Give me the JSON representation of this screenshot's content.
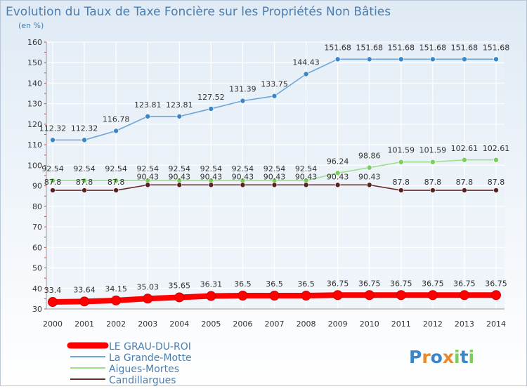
{
  "title": "Evolution du Taux de Taxe Foncière sur les Propriétés Non Bâties",
  "unit_label": "(en %)",
  "brand": "Proxiti",
  "colors": {
    "bg_top": "#e6eff7",
    "bg_bottom": "#ffffff",
    "title": "#4a7eb0",
    "axis_text": "#333333",
    "grid": "#ffffff"
  },
  "chart_data": {
    "type": "line",
    "x": [
      "2000",
      "2001",
      "2002",
      "2003",
      "2004",
      "2005",
      "2006",
      "2007",
      "2008",
      "2009",
      "2010",
      "2011",
      "2012",
      "2013",
      "2014"
    ],
    "ylim": [
      30,
      160
    ],
    "yticks": [
      30,
      40,
      50,
      60,
      70,
      80,
      90,
      100,
      110,
      120,
      130,
      140,
      150,
      160
    ],
    "grid": true,
    "legend_position": "bottom-left",
    "series": [
      {
        "name": "LE GRAU-DU-ROI",
        "color": "#ff0000",
        "marker": "#ff0000",
        "values": [
          33.4,
          33.64,
          34.15,
          35.03,
          35.65,
          36.31,
          36.5,
          36.5,
          36.5,
          36.75,
          36.75,
          36.75,
          36.75,
          36.75,
          36.75
        ],
        "labels": [
          "33.4",
          "33.64",
          "34.15",
          "35.03",
          "35.65",
          "36.31",
          "36.5",
          "36.5",
          "36.5",
          "36.75",
          "36.75",
          "36.75",
          "36.75",
          "36.75",
          "36.75"
        ]
      },
      {
        "name": "La Grande-Motte",
        "color": "#6fa6d6",
        "marker": "#3a86c8",
        "values": [
          112.32,
          112.32,
          116.78,
          123.81,
          123.81,
          127.52,
          131.39,
          133.75,
          144.43,
          151.68,
          151.68,
          151.68,
          151.68,
          151.68,
          151.68
        ],
        "labels": [
          "112.32",
          "112.32",
          "116.78",
          "123.81",
          "123.81",
          "127.52",
          "131.39",
          "133.75",
          "144.43",
          "151.68",
          "151.68",
          "151.68",
          "151.68",
          "151.68",
          "151.68"
        ]
      },
      {
        "name": "Aigues-Mortes",
        "color": "#9ee08a",
        "marker": "#7ccd5e",
        "values": [
          92.54,
          92.54,
          92.54,
          92.54,
          92.54,
          92.54,
          92.54,
          92.54,
          92.54,
          96.24,
          98.86,
          101.59,
          101.59,
          102.61,
          102.61
        ],
        "labels": [
          "92.54",
          "92.54",
          "92.54",
          "92.54",
          "92.54",
          "92.54",
          "92.54",
          "92.54",
          "92.54",
          "96.24",
          "98.86",
          "101.59",
          "101.59",
          "102.61",
          "102.61"
        ]
      },
      {
        "name": "Candillargues",
        "color": "#6b2a2a",
        "marker": "#5a1f1f",
        "values": [
          87.8,
          87.8,
          87.8,
          90.43,
          90.43,
          90.43,
          90.43,
          90.43,
          90.43,
          90.43,
          90.43,
          87.8,
          87.8,
          87.8,
          87.8
        ],
        "labels": [
          "87.8",
          "87.8",
          "87.8",
          "90.43",
          "90.43",
          "90.43",
          "90.43",
          "90.43",
          "90.43",
          "90.43",
          "90.43",
          "87.8",
          "87.8",
          "87.8",
          "87.8"
        ]
      }
    ]
  }
}
